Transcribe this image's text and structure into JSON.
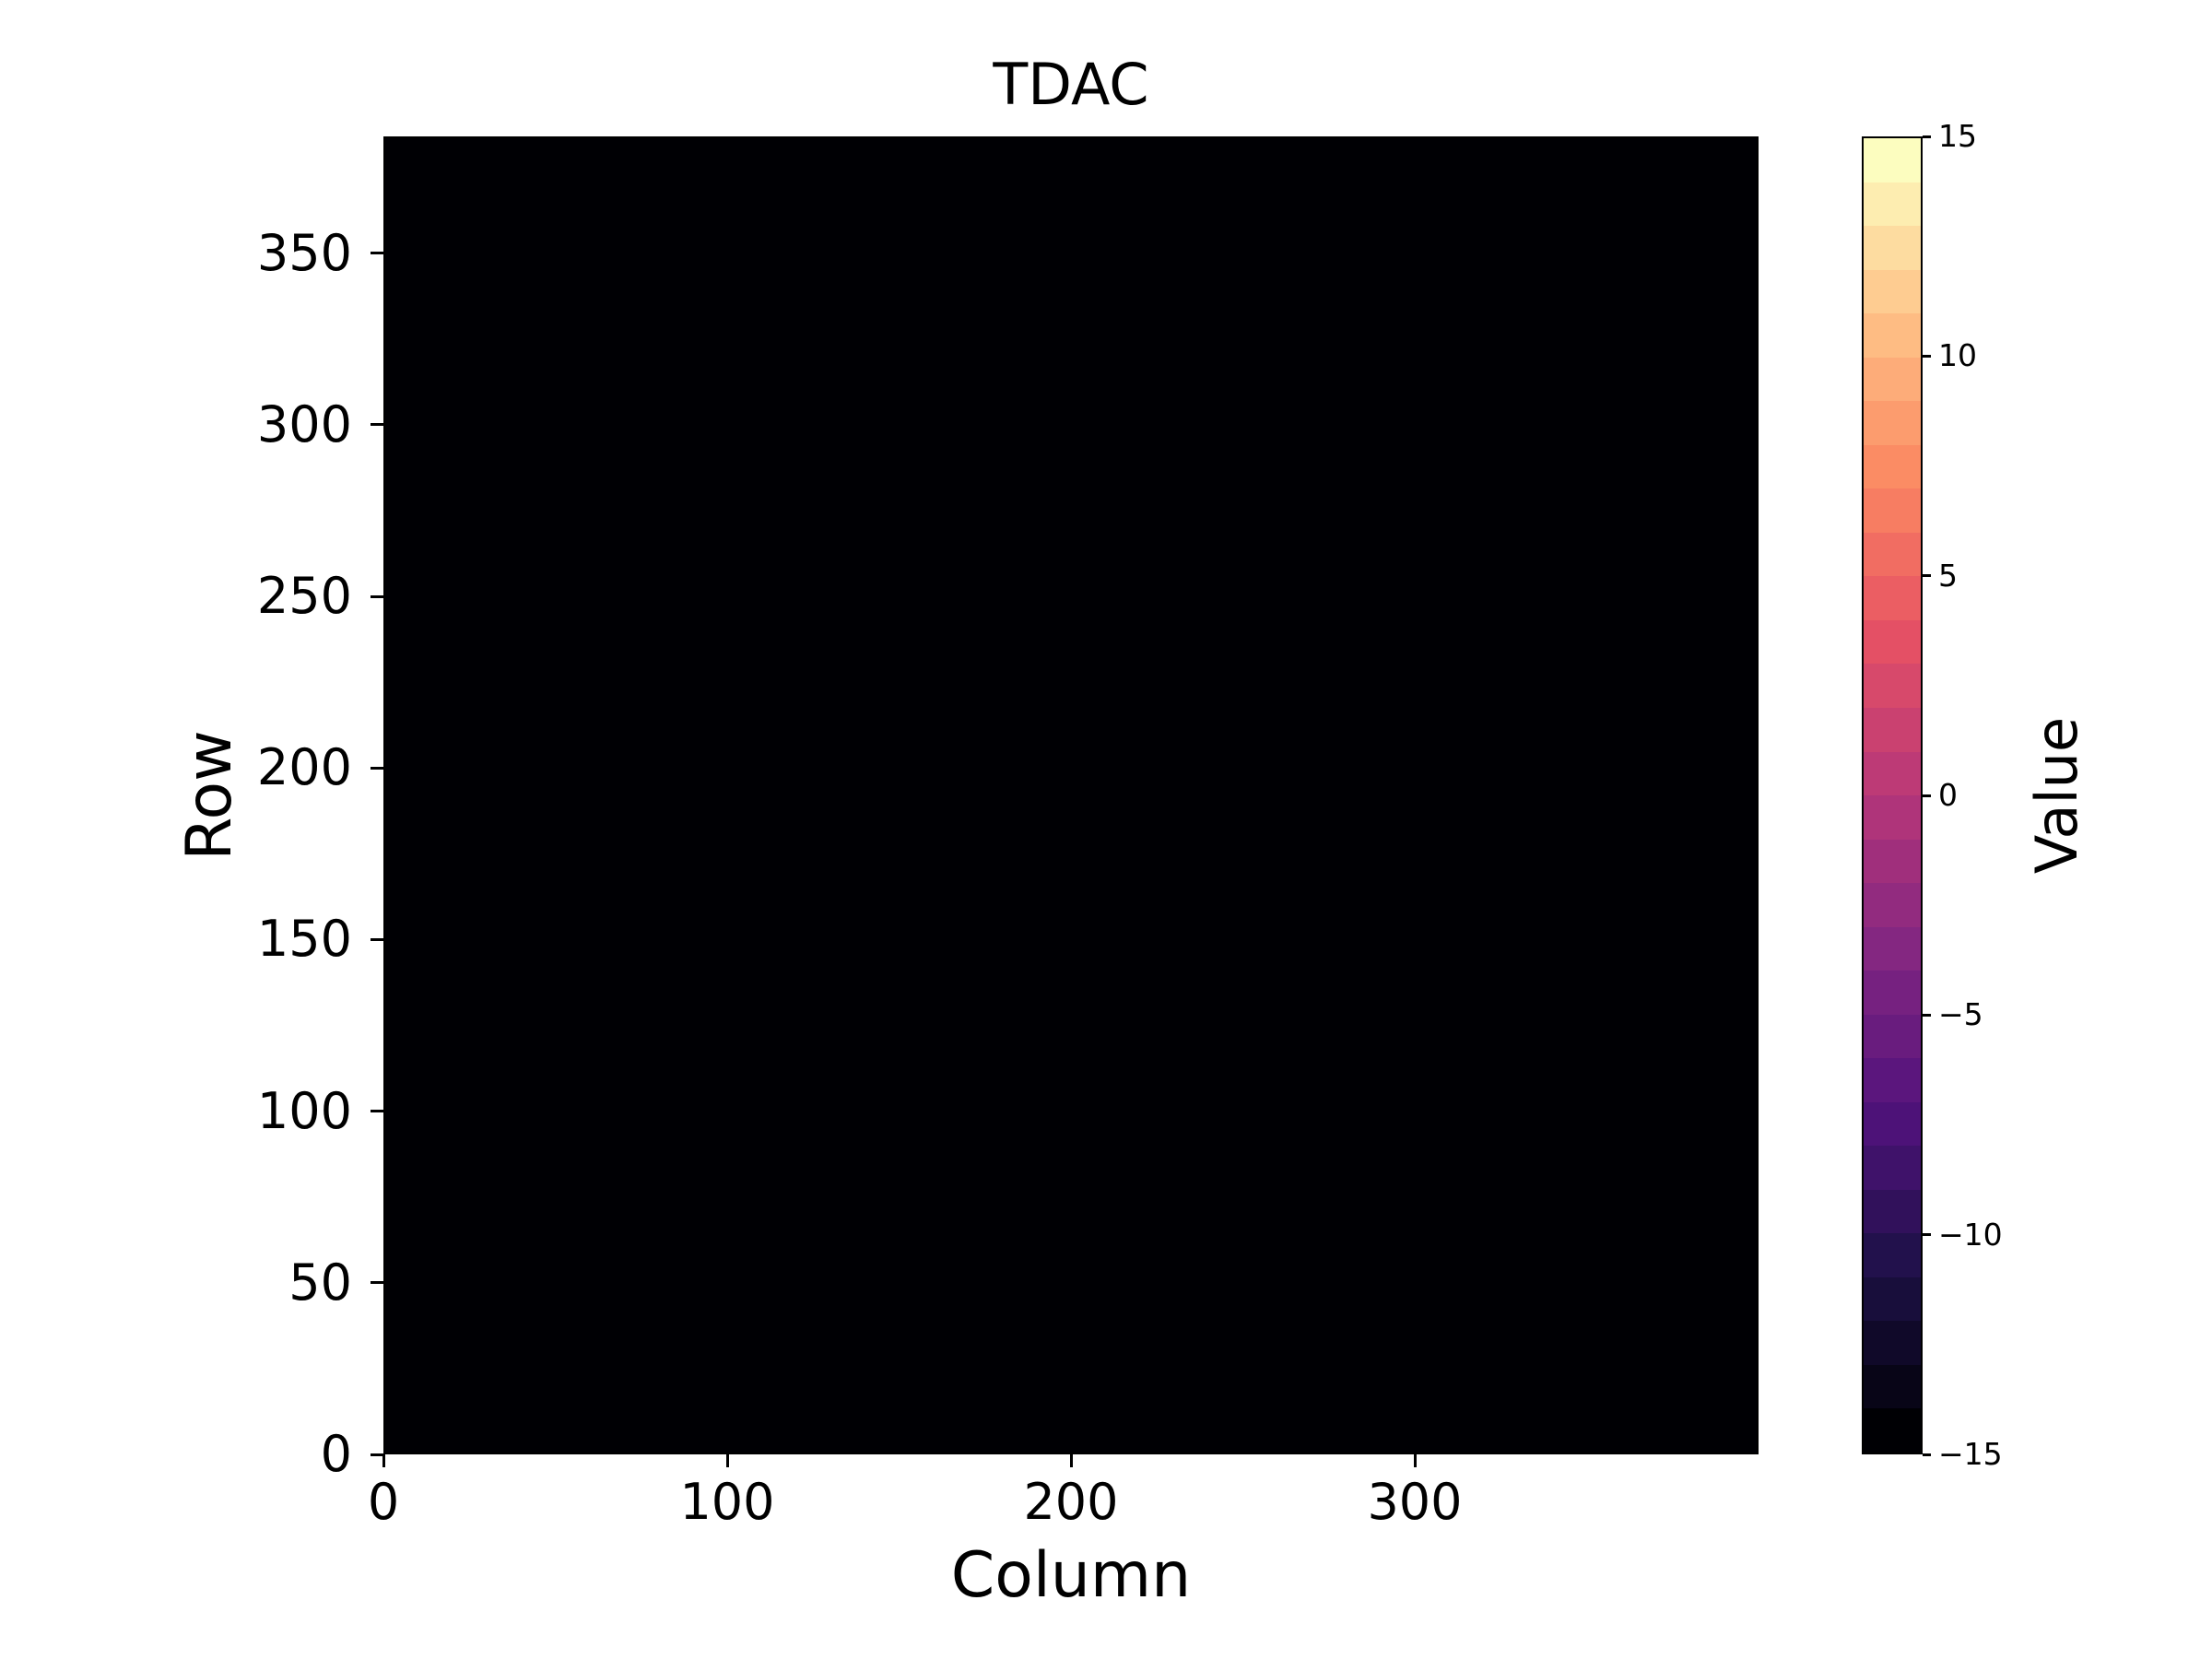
{
  "figure": {
    "background": "#ffffff",
    "text_color": "#000000"
  },
  "chart_data": {
    "type": "heatmap",
    "title": "TDAC",
    "xlabel": "Column",
    "ylabel": "Row",
    "colorbar_label": "Value",
    "x_range": [
      0,
      400
    ],
    "y_range": [
      0,
      384
    ],
    "x_ticks": [
      "0",
      "100",
      "200",
      "300"
    ],
    "x_tick_values": [
      0,
      100,
      200,
      300
    ],
    "y_ticks": [
      "0",
      "50",
      "100",
      "150",
      "200",
      "250",
      "300",
      "350"
    ],
    "y_tick_values": [
      0,
      50,
      100,
      150,
      200,
      250,
      300,
      350
    ],
    "value_range": [
      -15,
      15
    ],
    "colorbar_ticks": [
      "15",
      "10",
      "5",
      "0",
      "−5",
      "−10",
      "−15"
    ],
    "colorbar_tick_values": [
      15,
      10,
      5,
      0,
      -5,
      -10,
      -15
    ],
    "uniform_value": -15,
    "data_summary": "Uniform pixel map: every cell across 400 columns x 384 rows has value -15, so the entire heatmap renders as the lowest colormap color (black).",
    "heatmap_fill": "#000004",
    "colormap_name": "magma (discretized into 30 bands, step 1 from -15 to 15)",
    "colormap_bands": [
      "#000004",
      "#080517",
      "#100929",
      "#180e3b",
      "#22114c",
      "#31115b",
      "#3f126a",
      "#4d1278",
      "#5b167d",
      "#691c7e",
      "#762180",
      "#842781",
      "#922b7f",
      "#a02f7c",
      "#af347a",
      "#bd3a76",
      "#ca4170",
      "#d7496b",
      "#e45065",
      "#eb5e63",
      "#f16d62",
      "#f77d62",
      "#fb8c64",
      "#fc9c6e",
      "#fdac79",
      "#febc83",
      "#fecc91",
      "#fddca0",
      "#fdedb0",
      "#fcfdbf"
    ],
    "grid": false,
    "legend_position": "none",
    "colorbar_position": "right"
  }
}
